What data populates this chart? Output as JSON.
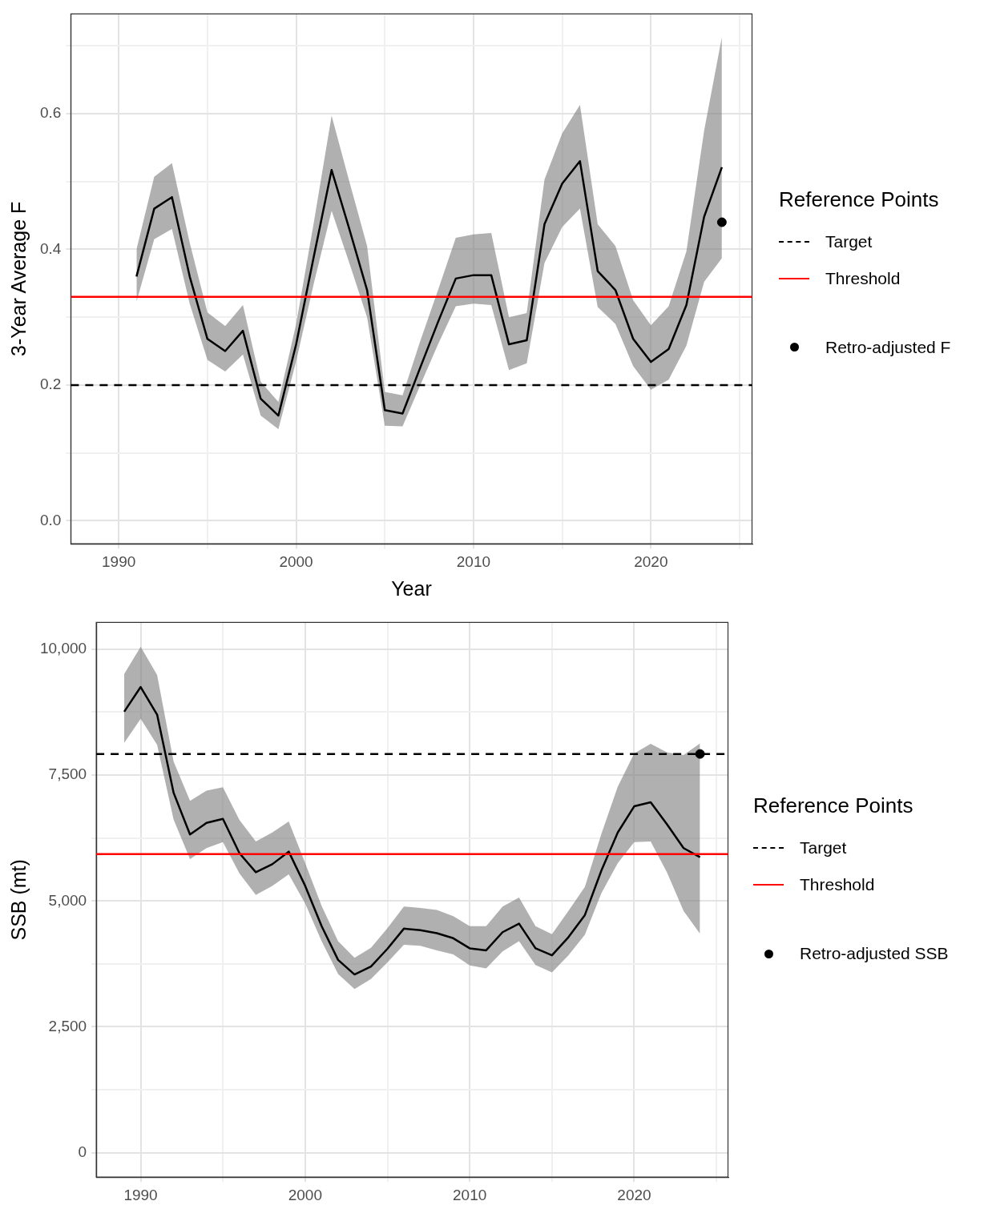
{
  "chart_data": [
    {
      "type": "line",
      "xlabel": "Year",
      "ylabel": "3-Year Average F",
      "legend_title": "Reference Points",
      "legend": "right",
      "grid": true,
      "xlim": [
        1987.3,
        2025.7
      ],
      "xticks": [
        1990,
        {
          "value": 1995,
          "label": null
        },
        2000,
        {
          "value": 2005,
          "label": null
        },
        2010,
        {
          "value": 2015,
          "label": null
        },
        2020,
        {
          "value": 2025,
          "label": null
        }
      ],
      "ylim": [
        -0.034,
        0.747
      ],
      "yticks": [
        {
          "value": 0,
          "label": "0.0"
        },
        {
          "value": 0.1,
          "label": null
        },
        0.2,
        {
          "value": 0.3,
          "label": null
        },
        0.4,
        {
          "value": 0.5,
          "label": null
        },
        0.6,
        {
          "value": 0.7,
          "label": null
        }
      ],
      "ref_lines": [
        {
          "axis": "y",
          "value": 0.2,
          "label": "Target",
          "color": "#000000",
          "line_style": "dashed"
        },
        {
          "axis": "y",
          "value": 0.33,
          "label": "Threshold",
          "color": "#ff0000",
          "line_style": "solid"
        }
      ],
      "series": [
        {
          "type": "line",
          "color": "#000000",
          "x": [
            1991,
            1992,
            1993,
            1994,
            1995,
            1996,
            1997,
            1998,
            1999,
            2000,
            2001,
            2002,
            2003,
            2004,
            2005,
            2006,
            2007,
            2008,
            2009,
            2010,
            2011,
            2012,
            2013,
            2014,
            2015,
            2016,
            2017,
            2018,
            2019,
            2020,
            2021,
            2022,
            2023,
            2024
          ],
          "values": [
            0.36,
            0.46,
            0.477,
            0.36,
            0.268,
            0.25,
            0.28,
            0.18,
            0.155,
            0.26,
            0.39,
            0.517,
            0.43,
            0.34,
            0.163,
            0.158,
            0.226,
            0.293,
            0.357,
            0.362,
            0.362,
            0.26,
            0.266,
            0.437,
            0.497,
            0.53,
            0.368,
            0.34,
            0.268,
            0.234,
            0.253,
            0.318,
            0.448,
            0.521
          ],
          "lower": [
            0.323,
            0.415,
            0.43,
            0.32,
            0.237,
            0.22,
            0.245,
            0.155,
            0.135,
            0.235,
            0.35,
            0.457,
            0.38,
            0.3,
            0.14,
            0.139,
            0.2,
            0.26,
            0.316,
            0.32,
            0.318,
            0.222,
            0.232,
            0.38,
            0.433,
            0.46,
            0.315,
            0.29,
            0.228,
            0.193,
            0.208,
            0.258,
            0.352,
            0.387
          ],
          "upper": [
            0.4,
            0.507,
            0.527,
            0.41,
            0.307,
            0.287,
            0.318,
            0.205,
            0.175,
            0.29,
            0.44,
            0.597,
            0.5,
            0.405,
            0.19,
            0.185,
            0.265,
            0.34,
            0.417,
            0.422,
            0.424,
            0.3,
            0.306,
            0.503,
            0.571,
            0.613,
            0.437,
            0.405,
            0.325,
            0.288,
            0.316,
            0.397,
            0.575,
            0.713
          ]
        },
        {
          "type": "scatter",
          "name": "Retro-adjusted F",
          "color": "#000000",
          "marker": "circle",
          "x": [
            2024
          ],
          "values": [
            0.44
          ]
        }
      ]
    },
    {
      "type": "line",
      "ylabel": "SSB (mt)",
      "legend_title": "Reference Points",
      "legend": "right",
      "grid": true,
      "xlim": [
        1987.3,
        2025.7
      ],
      "xticks": [
        1990,
        {
          "value": 1995,
          "label": null
        },
        2000,
        {
          "value": 2005,
          "label": null
        },
        2010,
        {
          "value": 2015,
          "label": null
        },
        2020,
        {
          "value": 2025,
          "label": null
        }
      ],
      "ylim": [
        -485,
        10532
      ],
      "yticks": [
        0,
        {
          "value": 1250,
          "label": null
        },
        {
          "value": 2500,
          "label": "2,500"
        },
        {
          "value": 3750,
          "label": null
        },
        {
          "value": 5000,
          "label": "5,000"
        },
        {
          "value": 6250,
          "label": null
        },
        {
          "value": 7500,
          "label": "7,500"
        },
        {
          "value": 8750,
          "label": null
        },
        {
          "value": 10000,
          "label": "10,000"
        }
      ],
      "ref_lines": [
        {
          "axis": "y",
          "value": 7920,
          "label": "Target",
          "color": "#000000",
          "line_style": "dashed"
        },
        {
          "axis": "y",
          "value": 5930,
          "label": "Threshold",
          "color": "#ff0000",
          "line_style": "solid"
        }
      ],
      "series": [
        {
          "type": "line",
          "color": "#000000",
          "x": [
            1989,
            1990,
            1991,
            1992,
            1993,
            1994,
            1995,
            1996,
            1997,
            1998,
            1999,
            2000,
            2001,
            2002,
            2003,
            2004,
            2005,
            2006,
            2007,
            2008,
            2009,
            2010,
            2011,
            2012,
            2013,
            2014,
            2015,
            2016,
            2017,
            2018,
            2019,
            2020,
            2021,
            2022,
            2023,
            2024
          ],
          "values": [
            8760,
            9250,
            8700,
            7150,
            6320,
            6550,
            6630,
            5950,
            5570,
            5730,
            5980,
            5300,
            4500,
            3830,
            3540,
            3700,
            4050,
            4450,
            4420,
            4360,
            4260,
            4060,
            4020,
            4380,
            4550,
            4060,
            3920,
            4280,
            4720,
            5600,
            6360,
            6880,
            6960,
            6520,
            6050,
            5870
          ],
          "lower": [
            8140,
            8620,
            8100,
            6620,
            5830,
            6050,
            6170,
            5550,
            5120,
            5300,
            5530,
            4950,
            4200,
            3550,
            3250,
            3450,
            3780,
            4130,
            4110,
            4020,
            3940,
            3720,
            3660,
            4000,
            4200,
            3730,
            3580,
            3920,
            4330,
            5150,
            5750,
            6170,
            6180,
            5560,
            4800,
            4350
          ],
          "upper": [
            9510,
            10050,
            9490,
            7770,
            6990,
            7190,
            7260,
            6610,
            6180,
            6360,
            6580,
            5750,
            4900,
            4200,
            3870,
            4070,
            4460,
            4890,
            4860,
            4820,
            4700,
            4500,
            4500,
            4890,
            5070,
            4500,
            4340,
            4800,
            5280,
            6330,
            7270,
            7930,
            8120,
            7950,
            7900,
            8130
          ]
        },
        {
          "type": "scatter",
          "name": "Retro-adjusted SSB",
          "color": "#000000",
          "marker": "circle",
          "x": [
            2024
          ],
          "values": [
            7920
          ]
        }
      ]
    }
  ]
}
